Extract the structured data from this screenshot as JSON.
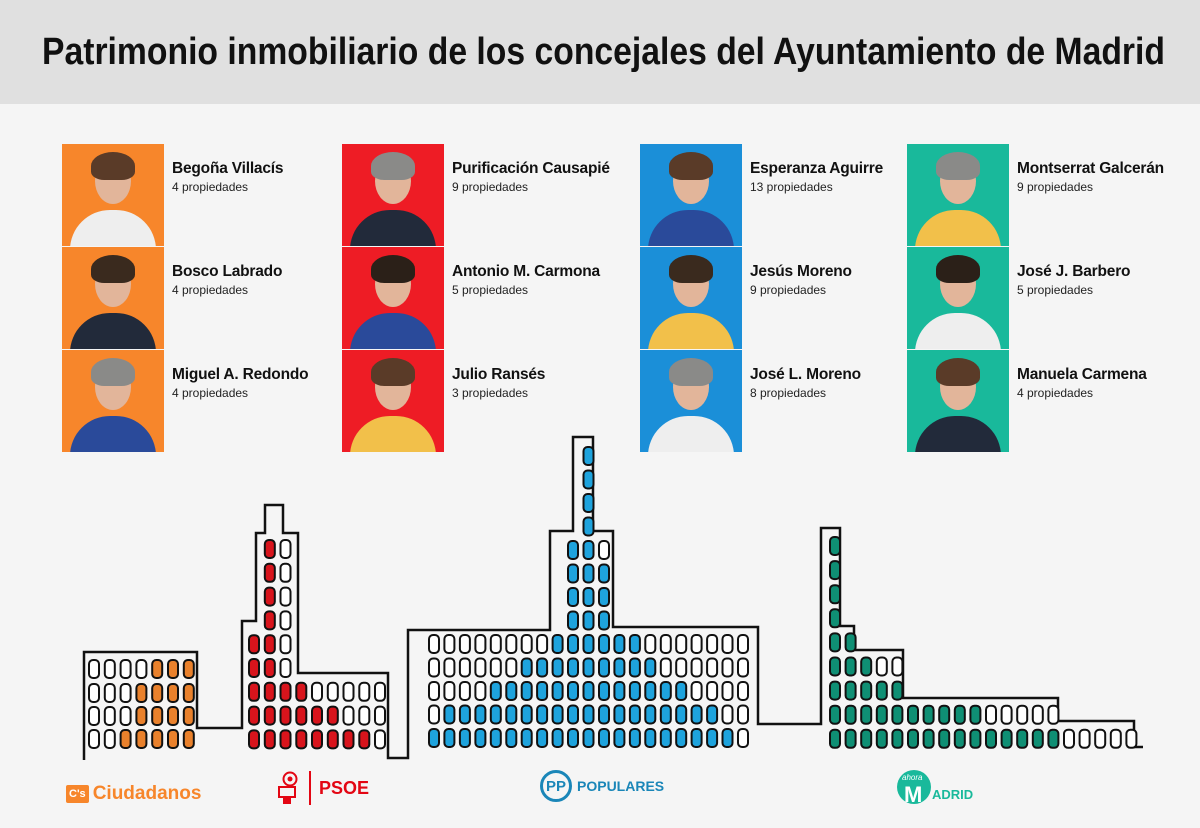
{
  "title": "Patrimonio inmobiliario de los concejales del Ayuntamiento de Madrid",
  "parties": [
    {
      "id": "ciudadanos",
      "color": "#f7862b",
      "window_color": "#e9812c",
      "logo": {
        "badge": "C's",
        "text": "Ciudadanos"
      },
      "members": [
        {
          "name": "Begoña Villacís",
          "properties": "4 propiedades"
        },
        {
          "name": "Bosco Labrado",
          "properties": "4 propiedades"
        },
        {
          "name": "Miguel A. Redondo",
          "properties": "4 propiedades"
        }
      ]
    },
    {
      "id": "psoe",
      "color": "#ee1c25",
      "window_color": "#d8141c",
      "logo": {
        "text": "PSOE"
      },
      "members": [
        {
          "name": "Purificación Causapié",
          "properties": "9 propiedades"
        },
        {
          "name": "Antonio M. Carmona",
          "properties": "5 propiedades"
        },
        {
          "name": "Julio Ransés",
          "properties": "3 propiedades"
        }
      ]
    },
    {
      "id": "pp",
      "color": "#1b8fd8",
      "window_color": "#1ea3dd",
      "logo": {
        "badge": "PP",
        "text": "POPULARES"
      },
      "members": [
        {
          "name": "Esperanza Aguirre",
          "properties": "13 propiedades"
        },
        {
          "name": "Jesús Moreno",
          "properties": "9 propiedades"
        },
        {
          "name": "José L. Moreno",
          "properties": "8 propiedades"
        }
      ]
    },
    {
      "id": "ahora-madrid",
      "color": "#19b99b",
      "window_color": "#0f8f74",
      "logo": {
        "badge": "ahora",
        "big_letter": "M",
        "text": "ADRID"
      },
      "members": [
        {
          "name": "Montserrat Galcerán",
          "properties": "9 propiedades"
        },
        {
          "name": "José J. Barbero",
          "properties": "5 propiedades"
        },
        {
          "name": "Manuela Carmena",
          "properties": "4 propiedades"
        }
      ]
    }
  ]
}
